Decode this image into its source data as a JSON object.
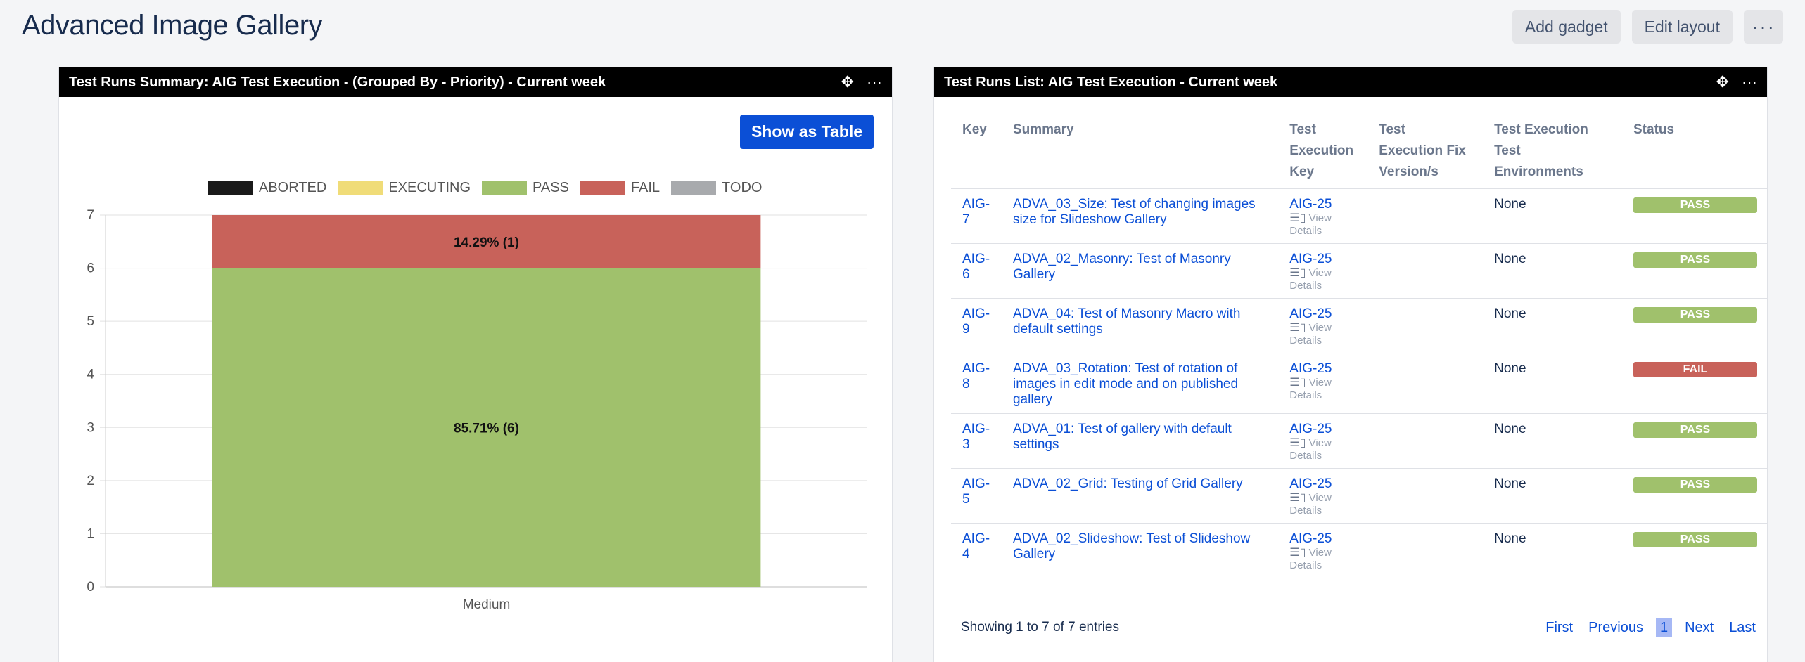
{
  "page": {
    "title": "Advanced Image Gallery",
    "actions": {
      "add_gadget": "Add gadget",
      "edit_layout": "Edit layout",
      "more": "···"
    }
  },
  "summary_gadget": {
    "title": "Test Runs Summary: AIG Test Execution - (Grouped By - Priority) - Current week",
    "show_table": "Show as Table",
    "chart_data": {
      "type": "bar",
      "stacked": true,
      "categories": [
        "Medium"
      ],
      "series": [
        {
          "name": "ABORTED",
          "color": "#1a1a1a",
          "values": [
            0
          ]
        },
        {
          "name": "EXECUTING",
          "color": "#f0dc78",
          "values": [
            0
          ]
        },
        {
          "name": "PASS",
          "color": "#a0c16c",
          "values": [
            6
          ],
          "label": "85.71% (6)"
        },
        {
          "name": "FAIL",
          "color": "#c8625a",
          "values": [
            1
          ],
          "label": "14.29% (1)"
        },
        {
          "name": "TODO",
          "color": "#a8aaad",
          "values": [
            0
          ]
        }
      ],
      "ylim": [
        0,
        7
      ],
      "yticks": [
        "0",
        "1",
        "2",
        "3",
        "4",
        "5",
        "6",
        "7"
      ],
      "grid": true,
      "legend": "top"
    }
  },
  "list_gadget": {
    "title": "Test Runs List: AIG Test Execution - Current week",
    "columns": [
      "Key",
      "Summary",
      "Test Execution Key",
      "Test Execution Fix Version/s",
      "Test Execution Test Environments",
      "Status"
    ],
    "view_details": "View Details",
    "rows": [
      {
        "key": "AIG-7",
        "summary": "ADVA_03_Size: Test of changing images size for Slideshow Gallery",
        "exec_key": "AIG-25",
        "fix": "",
        "env": "None",
        "status": "PASS"
      },
      {
        "key": "AIG-6",
        "summary": "ADVA_02_Masonry: Test of Masonry Gallery",
        "exec_key": "AIG-25",
        "fix": "",
        "env": "None",
        "status": "PASS"
      },
      {
        "key": "AIG-9",
        "summary": "ADVA_04: Test of Masonry Macro with default settings",
        "exec_key": "AIG-25",
        "fix": "",
        "env": "None",
        "status": "PASS"
      },
      {
        "key": "AIG-8",
        "summary": "ADVA_03_Rotation: Test of rotation of images in edit mode and on published gallery",
        "exec_key": "AIG-25",
        "fix": "",
        "env": "None",
        "status": "FAIL"
      },
      {
        "key": "AIG-3",
        "summary": "ADVA_01: Test of gallery with default settings",
        "exec_key": "AIG-25",
        "fix": "",
        "env": "None",
        "status": "PASS"
      },
      {
        "key": "AIG-5",
        "summary": "ADVA_02_Grid: Testing of Grid Gallery",
        "exec_key": "AIG-25",
        "fix": "",
        "env": "None",
        "status": "PASS"
      },
      {
        "key": "AIG-4",
        "summary": "ADVA_02_Slideshow: Test of Slideshow Gallery",
        "exec_key": "AIG-25",
        "fix": "",
        "env": "None",
        "status": "PASS"
      }
    ],
    "status_colors": {
      "PASS": "#a0c16c",
      "FAIL": "#c8625a"
    },
    "footer": "Showing 1 to 7 of 7 entries",
    "pager": {
      "first": "First",
      "previous": "Previous",
      "current": "1",
      "next": "Next",
      "last": "Last"
    }
  }
}
